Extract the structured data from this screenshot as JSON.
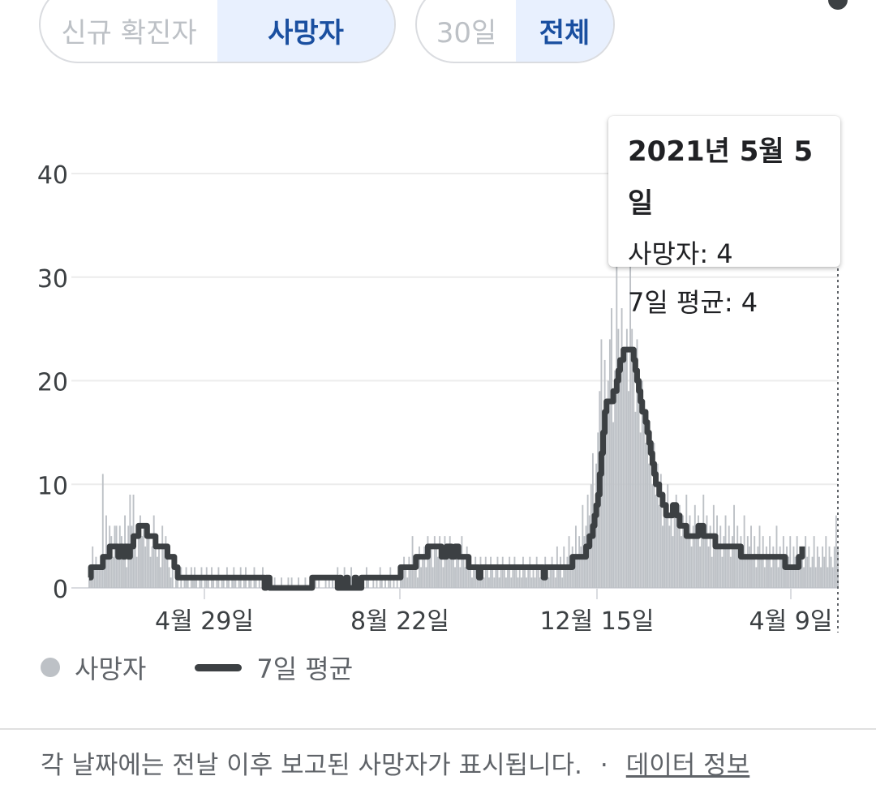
{
  "toggles": {
    "metric": [
      {
        "label": "신규 확진자",
        "selected": false
      },
      {
        "label": "사망자",
        "selected": true
      }
    ],
    "range": [
      {
        "label": "30일",
        "selected": false
      },
      {
        "label": "전체",
        "selected": true
      }
    ]
  },
  "tooltip": {
    "date": "2021년 5월 5일",
    "deaths_line": "사망자: 4",
    "avg_line": "7일 평균: 4"
  },
  "legend": {
    "deaths": "사망자",
    "avg": "7일 평균"
  },
  "footer": {
    "note": "각 날짜에는 전날 이후 보고된 사망자가 표시됩니다.",
    "separator": "·",
    "link": "데이터 정보"
  },
  "colors": {
    "bars": "#bdc1c6",
    "avg_line": "#3c4043",
    "accent": "#1a4fa0",
    "selected_bg": "#e8f0fe"
  },
  "chart_data": {
    "type": "bar",
    "x_label_ticks": [
      "4월 29일",
      "8월 22일",
      "12월 15일",
      "4월 9일"
    ],
    "y_ticks": [
      0,
      10,
      20,
      30,
      40
    ],
    "ylim": [
      0,
      40
    ],
    "grid": true,
    "hovered_date": "2021년 5월 5일",
    "series": [
      {
        "name": "사망자",
        "kind": "bar",
        "values": [
          1,
          2,
          4,
          2,
          3,
          2,
          2,
          3,
          11,
          2,
          7,
          3,
          6,
          5,
          3,
          6,
          6,
          4,
          6,
          5,
          3,
          7,
          2,
          6,
          9,
          6,
          9,
          5,
          3,
          6,
          7,
          5,
          6,
          4,
          6,
          5,
          3,
          4,
          7,
          5,
          3,
          4,
          2,
          6,
          4,
          5,
          3,
          2,
          1,
          2,
          0,
          1,
          2,
          0,
          2,
          0,
          1,
          2,
          1,
          0,
          2,
          1,
          2,
          1,
          0,
          1,
          2,
          0,
          1,
          2,
          1,
          0,
          2,
          1,
          0,
          1,
          2,
          0,
          1,
          1,
          0,
          2,
          1,
          0,
          1,
          2,
          1,
          0,
          1,
          2,
          0,
          1,
          2,
          0,
          1,
          1,
          0,
          2,
          1,
          0,
          1,
          0,
          2,
          1,
          0,
          0,
          1,
          0,
          0,
          1,
          0,
          0,
          0,
          1,
          0,
          0,
          0,
          1,
          0,
          1,
          0,
          0,
          0,
          1,
          0,
          0,
          0,
          1,
          0,
          0,
          1,
          0,
          0,
          1,
          0,
          1,
          0,
          0,
          0,
          1,
          0,
          1,
          0,
          1,
          0,
          1,
          2,
          0,
          1,
          0,
          2,
          1,
          0,
          1,
          2,
          0,
          1,
          0,
          1,
          0,
          0,
          1,
          0,
          2,
          1,
          0,
          0,
          1,
          0,
          1,
          0,
          2,
          1,
          0,
          1,
          0,
          1,
          2,
          0,
          1,
          0,
          1,
          0,
          2,
          1,
          3,
          2,
          1,
          3,
          2,
          5,
          2,
          3,
          1,
          4,
          2,
          3,
          4,
          2,
          5,
          3,
          4,
          2,
          5,
          4,
          3,
          5,
          4,
          2,
          5,
          3,
          4,
          5,
          3,
          4,
          2,
          3,
          4,
          2,
          5,
          3,
          2,
          4,
          2,
          3,
          1,
          2,
          3,
          1,
          2,
          3,
          2,
          1,
          3,
          2,
          1,
          3,
          2,
          1,
          2,
          3,
          1,
          2,
          3,
          2,
          1,
          2,
          3,
          1,
          2,
          3,
          2,
          1,
          2,
          1,
          3,
          2,
          1,
          2,
          3,
          1,
          2,
          1,
          3,
          2,
          1,
          2,
          1,
          3,
          2,
          1,
          2,
          3,
          2,
          1,
          4,
          2,
          3,
          1,
          4,
          2,
          3,
          5,
          2,
          4,
          3,
          6,
          3,
          5,
          4,
          8,
          5,
          6,
          9,
          7,
          10,
          13,
          8,
          12,
          15,
          19,
          24,
          17,
          22,
          15,
          20,
          24,
          27,
          16,
          21,
          33,
          25,
          20,
          27,
          23,
          22,
          25,
          19,
          35,
          25,
          22,
          17,
          24,
          19,
          15,
          20,
          18,
          14,
          17,
          12,
          15,
          10,
          14,
          9,
          12,
          8,
          11,
          6,
          9,
          7,
          10,
          6,
          8,
          5,
          7,
          9,
          6,
          8,
          5,
          7,
          6,
          9,
          5,
          7,
          4,
          6,
          8,
          5,
          7,
          4,
          6,
          9,
          5,
          7,
          4,
          6,
          3,
          8,
          5,
          7,
          4,
          6,
          3,
          5,
          7,
          4,
          6,
          3,
          5,
          8,
          4,
          6,
          3,
          5,
          4,
          7,
          3,
          5,
          4,
          6,
          3,
          5,
          2,
          4,
          6,
          3,
          5,
          2,
          4,
          3,
          5,
          2,
          4,
          3,
          6,
          2,
          4,
          3,
          5,
          2,
          4,
          3,
          5,
          2,
          4,
          3,
          5,
          2,
          3,
          4,
          2,
          5,
          3,
          4,
          2,
          3,
          5,
          2,
          4,
          3,
          2,
          4,
          3,
          5,
          2,
          4,
          3,
          2,
          4,
          7,
          4
        ]
      },
      {
        "name": "7일 평균",
        "kind": "line",
        "values": [
          1,
          2,
          2,
          2,
          2,
          2,
          2,
          2,
          3,
          3,
          3,
          3,
          4,
          4,
          4,
          4,
          4,
          3,
          4,
          4,
          3,
          4,
          4,
          3,
          4,
          4,
          5,
          5,
          5,
          6,
          6,
          6,
          6,
          6,
          5,
          5,
          5,
          5,
          5,
          4,
          4,
          4,
          4,
          4,
          4,
          4,
          3,
          3,
          3,
          3,
          2,
          2,
          1,
          1,
          1,
          1,
          1,
          1,
          1,
          1,
          1,
          1,
          1,
          1,
          1,
          1,
          1,
          1,
          1,
          1,
          1,
          1,
          1,
          1,
          1,
          1,
          1,
          1,
          1,
          1,
          1,
          1,
          1,
          1,
          1,
          1,
          1,
          1,
          1,
          1,
          1,
          1,
          1,
          1,
          1,
          1,
          1,
          1,
          1,
          1,
          1,
          1,
          1,
          0,
          1,
          1,
          0,
          0,
          0,
          0,
          0,
          0,
          0,
          0,
          0,
          0,
          0,
          0,
          0,
          0,
          0,
          0,
          0,
          0,
          0,
          0,
          0,
          0,
          0,
          0,
          0,
          1,
          1,
          1,
          1,
          1,
          1,
          1,
          1,
          1,
          1,
          1,
          1,
          1,
          1,
          1,
          0,
          1,
          0,
          0,
          0,
          1,
          0,
          0,
          0,
          0,
          1,
          0,
          0,
          0,
          1,
          1,
          1,
          1,
          1,
          1,
          1,
          1,
          1,
          1,
          1,
          1,
          1,
          1,
          1,
          1,
          1,
          1,
          1,
          1,
          1,
          1,
          1,
          2,
          2,
          2,
          2,
          2,
          2,
          2,
          2,
          2,
          3,
          3,
          3,
          3,
          3,
          3,
          3,
          4,
          4,
          4,
          4,
          4,
          4,
          4,
          4,
          3,
          3,
          3,
          4,
          4,
          4,
          3,
          3,
          4,
          4,
          3,
          3,
          3,
          3,
          3,
          3,
          2,
          2,
          2,
          2,
          2,
          2,
          1,
          2,
          2,
          2,
          2,
          2,
          2,
          2,
          2,
          2,
          2,
          2,
          2,
          2,
          2,
          2,
          2,
          2,
          2,
          2,
          2,
          2,
          2,
          2,
          2,
          2,
          2,
          2,
          2,
          2,
          2,
          2,
          2,
          2,
          2,
          2,
          2,
          2,
          1,
          2,
          2,
          2,
          2,
          2,
          2,
          2,
          2,
          2,
          2,
          2,
          2,
          2,
          2,
          2,
          2,
          3,
          3,
          3,
          3,
          3,
          3,
          3,
          3,
          4,
          4,
          5,
          5,
          6,
          7,
          8,
          9,
          11,
          13,
          15,
          17,
          18,
          18,
          18,
          18,
          19,
          19,
          20,
          21,
          22,
          22,
          23,
          23,
          23,
          23,
          23,
          23,
          22,
          21,
          20,
          19,
          18,
          17,
          17,
          16,
          15,
          14,
          13,
          12,
          11,
          10,
          10,
          9,
          9,
          8,
          8,
          7,
          7,
          7,
          7,
          8,
          8,
          7,
          7,
          6,
          6,
          6,
          6,
          5,
          5,
          5,
          5,
          5,
          5,
          5,
          6,
          6,
          6,
          5,
          5,
          5,
          5,
          5,
          5,
          5,
          4,
          4,
          4,
          4,
          4,
          4,
          4,
          4,
          4,
          4,
          4,
          4,
          4,
          4,
          4,
          3,
          3,
          3,
          3,
          3,
          3,
          3,
          3,
          3,
          3,
          3,
          3,
          3,
          3,
          3,
          3,
          3,
          3,
          3,
          3,
          3,
          3,
          3,
          3,
          3,
          3,
          2,
          2,
          2,
          2,
          2,
          2,
          2,
          2,
          3,
          3,
          4
        ]
      }
    ]
  }
}
